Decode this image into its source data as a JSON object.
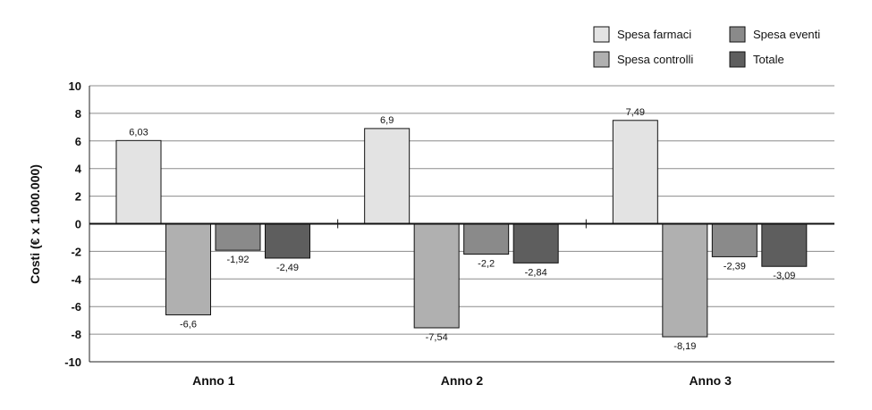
{
  "chart_data": {
    "type": "bar",
    "title": "",
    "xlabel": "",
    "ylabel": "Costi (€ x 1.000.000)",
    "ylim": [
      -10,
      10
    ],
    "yticks": [
      "10",
      "8",
      "6",
      "4",
      "2",
      "0",
      "-2",
      "-4",
      "-6",
      "-8",
      "-10"
    ],
    "categories": [
      "Anno 1",
      "Anno 2",
      "Anno 3"
    ],
    "legend_position": "top-right",
    "grid": true,
    "series": [
      {
        "name": "Spesa farmaci",
        "color": "#e3e3e3",
        "values": [
          6.03,
          6.9,
          7.49
        ],
        "labels": [
          "6,03",
          "6,9",
          "7,49"
        ]
      },
      {
        "name": "Spesa controlli",
        "color": "#b0b0b0",
        "values": [
          -6.6,
          -7.54,
          -8.19
        ],
        "labels": [
          "-6,6",
          "-7,54",
          "-8,19"
        ]
      },
      {
        "name": "Spesa eventi",
        "color": "#8a8a8a",
        "values": [
          -1.92,
          -2.2,
          -2.39
        ],
        "labels": [
          "-1,92",
          "-2,2",
          "-2,39"
        ]
      },
      {
        "name": "Totale",
        "color": "#5e5e5e",
        "values": [
          -2.49,
          -2.84,
          -3.09
        ],
        "labels": [
          "-2,49",
          "-2,84",
          "-3,09"
        ]
      }
    ]
  }
}
